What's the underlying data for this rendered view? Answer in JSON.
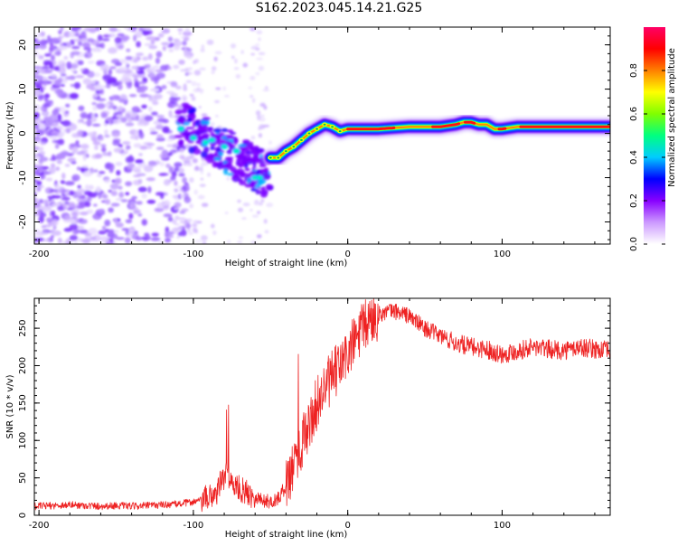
{
  "title": "S162.2023.045.14.21.G25",
  "chart_data": [
    {
      "type": "heatmap",
      "xlabel": "Height of straight line (km)",
      "ylabel": "Frequency (Hz)",
      "xlim": [
        -203,
        170
      ],
      "ylim": [
        -25,
        24
      ],
      "xticks": [
        -200,
        -100,
        0,
        100
      ],
      "yticks": [
        -20,
        -10,
        0,
        10,
        20
      ],
      "colorbar": {
        "label": "Normalized spectral amplitude",
        "range": [
          0,
          1
        ],
        "ticks": [
          "0.0",
          "0.2",
          "0.4",
          "0.6",
          "0.8"
        ],
        "colors": [
          "#ffffff",
          "#cc99ff",
          "#8800ff",
          "#0000ff",
          "#00ccff",
          "#00ff80",
          "#80ff00",
          "#ffff00",
          "#ff8000",
          "#ff0000",
          "#ff0066"
        ]
      },
      "ridge": {
        "description_points_x": [
          -50,
          -45,
          -40,
          -35,
          -30,
          -25,
          -20,
          -15,
          -10,
          -5,
          0,
          10,
          20,
          40,
          60,
          70,
          75,
          80,
          85,
          90,
          95,
          100,
          110,
          130,
          150,
          170
        ],
        "frequency_hz": [
          -5.5,
          -5.5,
          -4,
          -3,
          -1.5,
          0,
          1,
          2,
          1.5,
          0.5,
          1,
          1,
          1,
          1.5,
          1.5,
          2,
          2.5,
          2.5,
          2,
          2,
          1,
          1,
          1.5,
          1.5,
          1.5,
          1.5
        ]
      }
    },
    {
      "type": "line",
      "xlabel": "Height of straight line (km)",
      "ylabel": "SNR (10 * v/v)",
      "xlim": [
        -203,
        170
      ],
      "ylim": [
        0,
        290
      ],
      "xticks": [
        -200,
        -100,
        0,
        100
      ],
      "yticks": [
        0,
        50,
        100,
        150,
        200,
        250
      ],
      "color": "#ee2222",
      "series": [
        {
          "x": [
            -203,
            -190,
            -180,
            -170,
            -160,
            -150,
            -140,
            -130,
            -120,
            -110,
            -100,
            -95,
            -90,
            -85,
            -82,
            -80,
            -78,
            -75,
            -70,
            -65,
            -60,
            -55,
            -50,
            -45,
            -40,
            -35,
            -30,
            -25,
            -20,
            -15,
            -10,
            -5,
            0,
            5,
            10,
            15,
            20,
            25,
            30,
            35,
            40,
            45,
            50,
            60,
            70,
            80,
            90,
            100,
            110,
            120,
            130,
            140,
            150,
            160,
            170
          ],
          "values": [
            12,
            13,
            14,
            13,
            12,
            13,
            12,
            13,
            14,
            15,
            18,
            20,
            24,
            30,
            45,
            50,
            55,
            42,
            35,
            30,
            25,
            20,
            18,
            22,
            40,
            70,
            95,
            120,
            150,
            170,
            185,
            200,
            215,
            235,
            250,
            262,
            268,
            272,
            273,
            270,
            266,
            258,
            250,
            240,
            230,
            225,
            222,
            215,
            220,
            225,
            222,
            220,
            225,
            222,
            220
          ]
        }
      ]
    }
  ]
}
